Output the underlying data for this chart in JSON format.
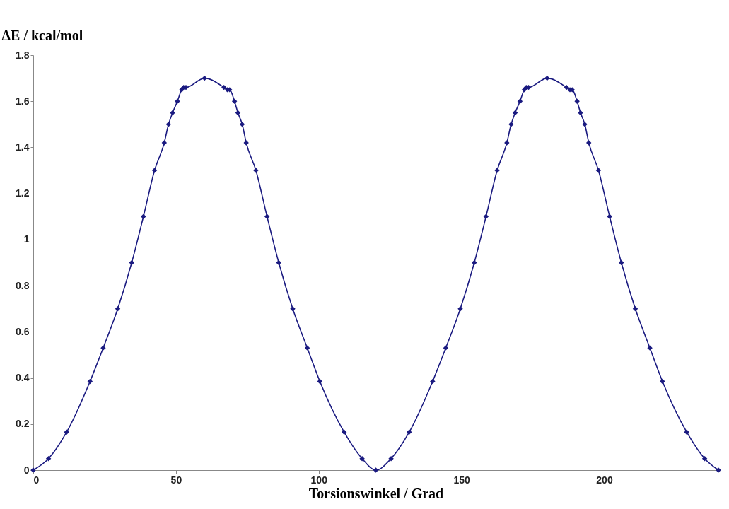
{
  "chart_data": {
    "type": "line",
    "xlabel": "Torsionswinkel / Grad",
    "ylabel": "ΔE / kcal/mol",
    "x": [
      0,
      5.35,
      11.7,
      19.9,
      24.5,
      29.6,
      34.5,
      38.6,
      42.5,
      45.9,
      47.4,
      48.8,
      50.5,
      52.0,
      52.7,
      53.5,
      60.0,
      66.8,
      68.0,
      68.8,
      70.5,
      71.7,
      73.2,
      74.6,
      78.0,
      81.9,
      86.0,
      90.9,
      96.0,
      100.4,
      108.9,
      115.2,
      120,
      125.35,
      131.7,
      139.9,
      144.5,
      149.6,
      154.5,
      158.6,
      162.5,
      165.9,
      167.4,
      168.8,
      170.5,
      172.0,
      172.7,
      173.5,
      180.0,
      186.8,
      188.0,
      188.8,
      190.5,
      191.7,
      193.2,
      194.6,
      198.0,
      201.9,
      206.0,
      210.9,
      216.0,
      220.4,
      228.9,
      235.2,
      240
    ],
    "series": [
      {
        "color": "#1a1a80",
        "values": [
          0,
          0.05,
          0.165,
          0.385,
          0.53,
          0.7,
          0.9,
          1.1,
          1.3,
          1.42,
          1.5,
          1.55,
          1.6,
          1.65,
          1.66,
          1.66,
          1.7,
          1.66,
          1.65,
          1.65,
          1.6,
          1.55,
          1.5,
          1.42,
          1.3,
          1.1,
          0.9,
          0.7,
          0.53,
          0.385,
          0.165,
          0.05,
          0,
          0.05,
          0.165,
          0.385,
          0.53,
          0.7,
          0.9,
          1.1,
          1.3,
          1.42,
          1.5,
          1.55,
          1.6,
          1.65,
          1.66,
          1.66,
          1.7,
          1.66,
          1.65,
          1.65,
          1.6,
          1.55,
          1.5,
          1.42,
          1.3,
          1.1,
          0.9,
          0.7,
          0.53,
          0.385,
          0.165,
          0.05,
          0
        ]
      }
    ],
    "xlim": [
      0,
      240
    ],
    "xticks": [
      0,
      50,
      100,
      150,
      200
    ],
    "ylim": [
      0,
      1.8
    ],
    "yticks": [
      0,
      0.2,
      0.4,
      0.6,
      0.8,
      1,
      1.2,
      1.4,
      1.6,
      1.8
    ],
    "grid": false,
    "marker": "diamond",
    "line_style": "solid"
  }
}
